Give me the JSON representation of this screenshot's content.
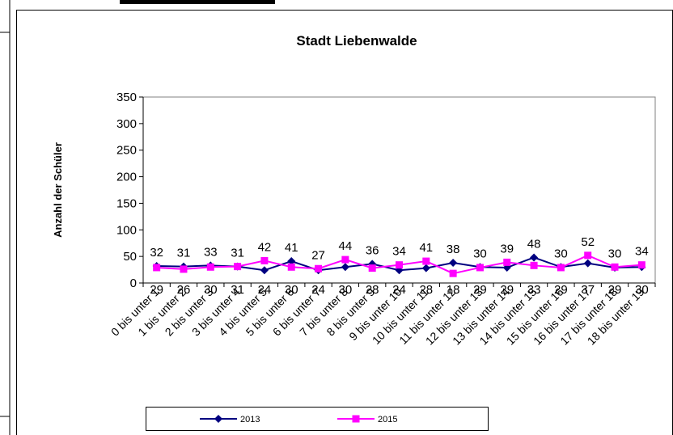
{
  "chart_data": {
    "type": "line",
    "title": "Stadt Liebenwalde",
    "ylabel": "Anzahl der Schüler",
    "categories": [
      "0 bis unter 1",
      "1 bis unter 2",
      "2 bis unter 3",
      "3 bis unter 4",
      "4 bis unter 5",
      "5 bis unter 6",
      "6 bis unter 7",
      "7 bis unter 8",
      "8 bis unter 9",
      "9 bis unter 10",
      "10 bis unter 11",
      "11 bis unter 12",
      "12 bis unter 13",
      "13 bis unter 14",
      "14 bis unter 15",
      "15 bis unter 16",
      "16 bis unter 17",
      "17 bis unter 18",
      "18 bis unter 19"
    ],
    "series": [
      {
        "name": "2013",
        "color": "#000080",
        "marker": "diamond",
        "values": [
          32,
          31,
          33,
          31,
          24,
          41,
          24,
          30,
          36,
          24,
          28,
          38,
          30,
          29,
          48,
          30,
          37,
          29,
          30
        ]
      },
      {
        "name": "2015",
        "color": "#ff00ff",
        "marker": "square",
        "values": [
          29,
          26,
          30,
          31,
          42,
          30,
          27,
          44,
          28,
          34,
          41,
          18,
          29,
          39,
          33,
          29,
          52,
          30,
          34
        ]
      }
    ],
    "ylim": [
      0,
      350
    ],
    "yticks": [
      0,
      50,
      100,
      150,
      200,
      250,
      300,
      350
    ],
    "legend": "bottom"
  }
}
